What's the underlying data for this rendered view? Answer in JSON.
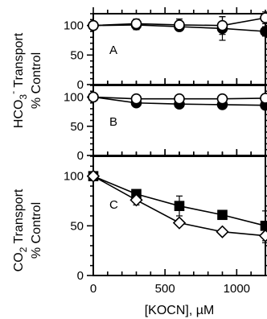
{
  "chart_data": {
    "type": "scatter",
    "xlabel": "[KOCN], µM",
    "x_ticks": [
      0,
      500,
      1000
    ],
    "xlim": [
      0,
      1200
    ],
    "ylabel_top": "HCO3- Transport",
    "ylabel_top_parts": [
      "HCO",
      "3",
      "-",
      " Transport"
    ],
    "ylabel_top_sub": "% Control",
    "ylabel_bottom": "CO2 Transport",
    "ylabel_bottom_parts": [
      "CO",
      "2",
      " Transport"
    ],
    "ylabel_bottom_sub": "% Control",
    "panels": [
      {
        "label": "A",
        "ylim": [
          0,
          120
        ],
        "y_ticks": [
          0,
          50,
          100
        ],
        "series": [
          {
            "marker": "filled-circle",
            "x": [
              0,
              300,
              600,
              900,
              1200
            ],
            "y": [
              100,
              101,
              98,
              95,
              90
            ],
            "err": [
              0,
              8,
              6,
              20,
              8
            ]
          },
          {
            "marker": "open-circle",
            "x": [
              0,
              300,
              600,
              900,
              1200
            ],
            "y": [
              100,
              103,
              101,
              100,
              113
            ],
            "err": [
              0,
              8,
              10,
              15,
              10
            ]
          }
        ]
      },
      {
        "label": "B",
        "ylim": [
          0,
          120
        ],
        "y_ticks": [
          0,
          50,
          100
        ],
        "series": [
          {
            "marker": "filled-circle",
            "x": [
              0,
              300,
              600,
              900,
              1200
            ],
            "y": [
              100,
              90,
              88,
              87,
              86
            ],
            "err": [
              0,
              6,
              5,
              5,
              6
            ]
          },
          {
            "marker": "open-circle",
            "x": [
              0,
              300,
              600,
              900,
              1200
            ],
            "y": [
              100,
              97,
              97,
              97,
              98
            ],
            "err": [
              0,
              4,
              4,
              5,
              4
            ]
          }
        ]
      },
      {
        "label": "C",
        "ylim": [
          0,
          120
        ],
        "y_ticks": [
          0,
          50,
          100
        ],
        "series": [
          {
            "marker": "filled-square",
            "x": [
              0,
              300,
              600,
              900,
              1200
            ],
            "y": [
              100,
              82,
              70,
              61,
              50
            ],
            "err": [
              0,
              4,
              10,
              4,
              15
            ]
          },
          {
            "marker": "open-diamond",
            "x": [
              0,
              300,
              600,
              900,
              1200
            ],
            "y": [
              100,
              76,
              53,
              44,
              40
            ],
            "err": [
              0,
              5,
              3,
              2,
              7
            ]
          }
        ]
      }
    ]
  }
}
